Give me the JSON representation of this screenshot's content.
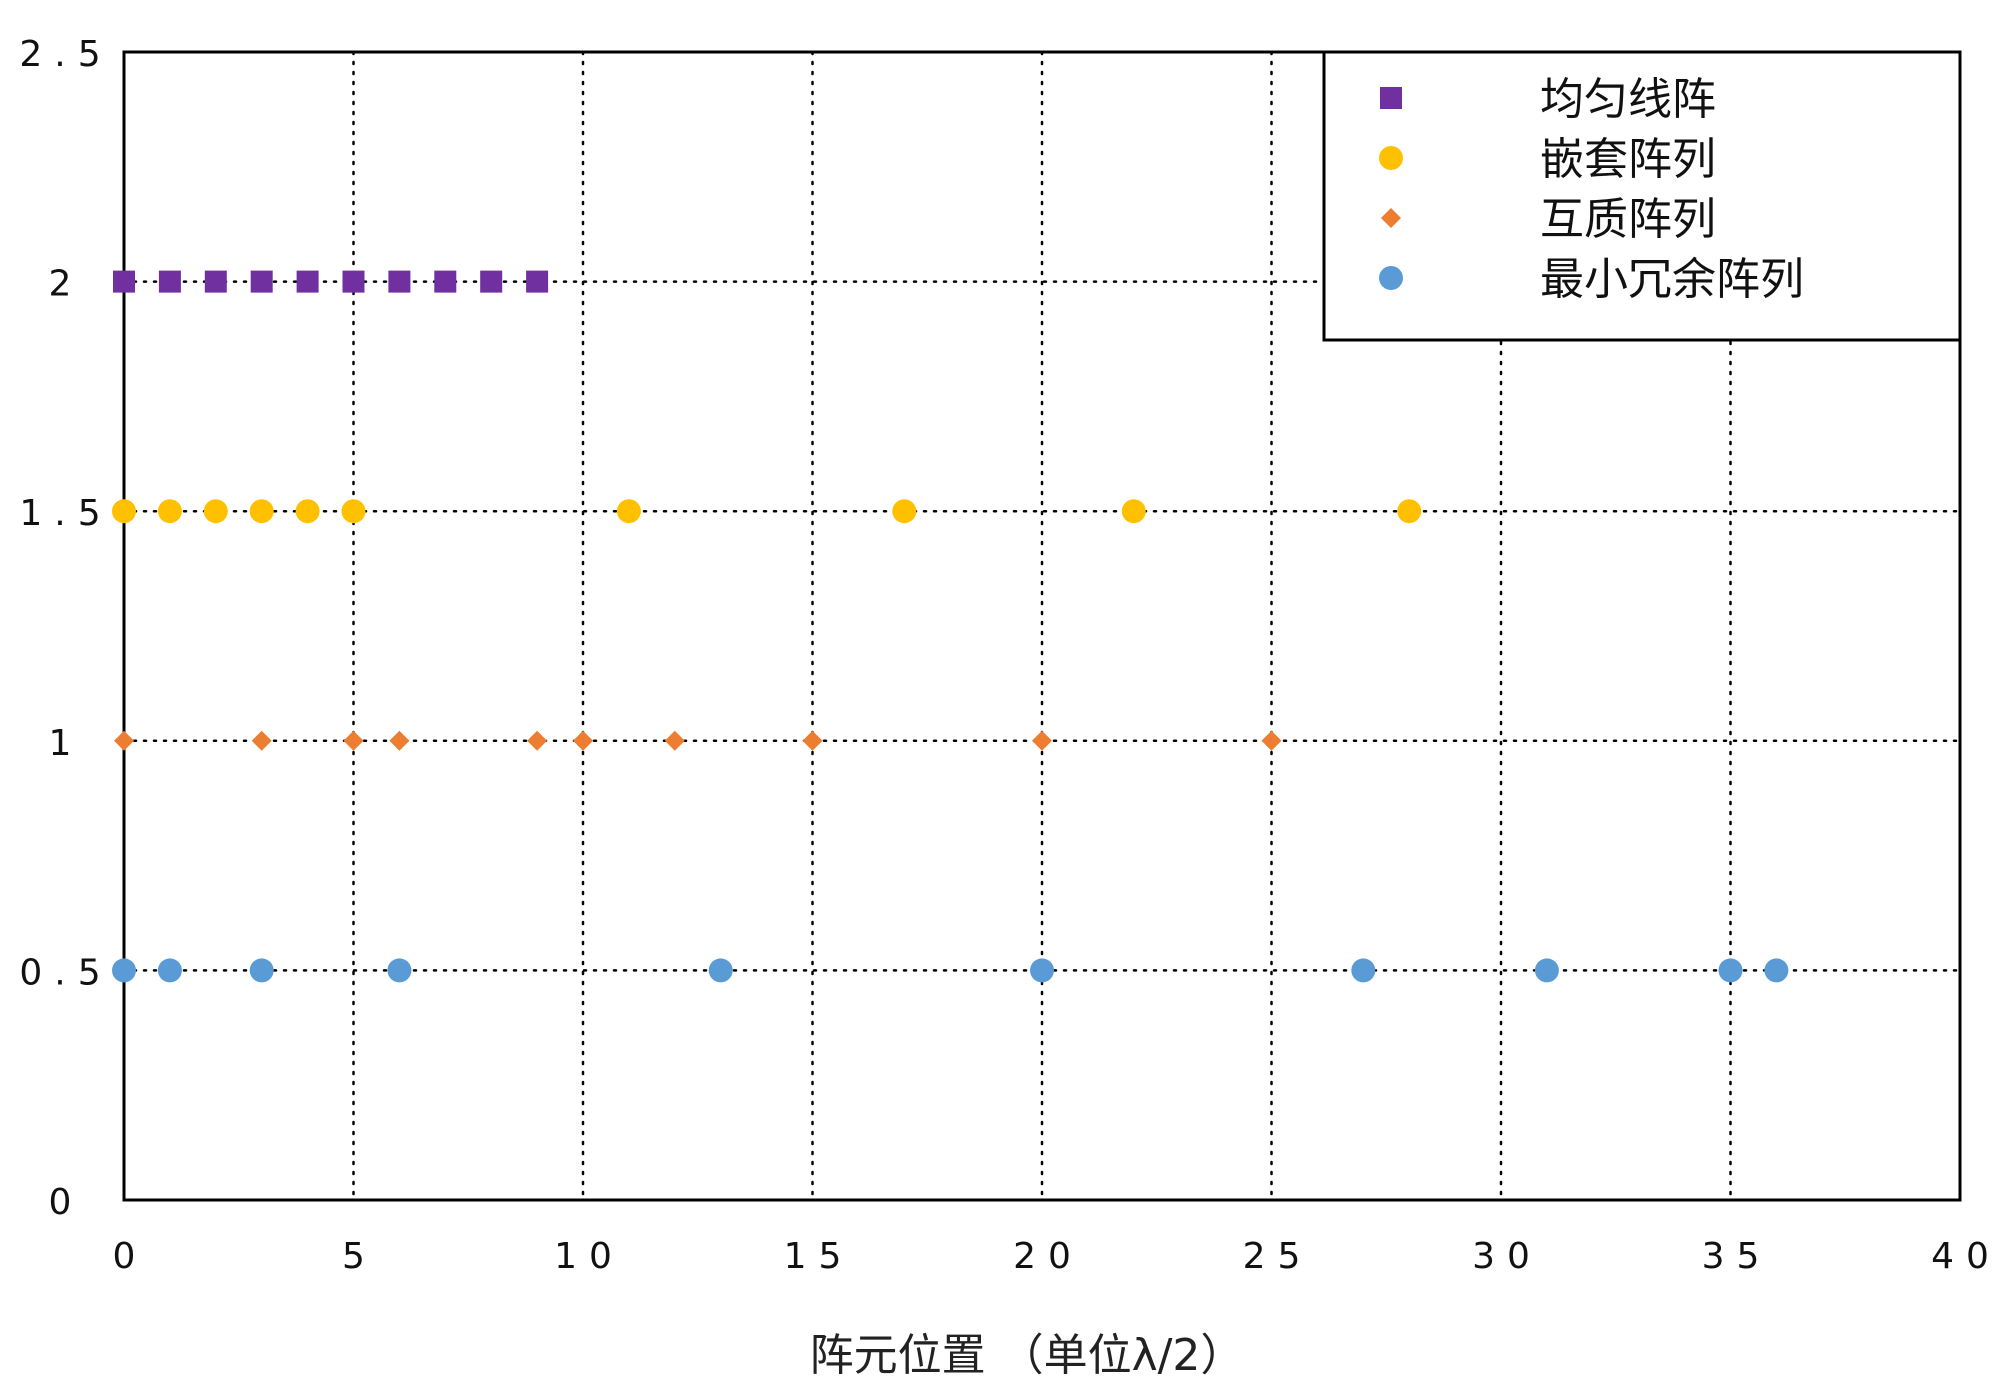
{
  "chart_data": {
    "type": "scatter",
    "title": "",
    "xlabel": "阵元位置 （单位λ/2）",
    "ylabel": "",
    "xlim": [
      0,
      40
    ],
    "ylim": [
      0,
      2.5
    ],
    "xticks": [
      0,
      5,
      10,
      15,
      20,
      25,
      30,
      35,
      40
    ],
    "xtick_labels": [
      "0",
      "5",
      "10",
      "15",
      "20",
      "25",
      "30",
      "35",
      "40"
    ],
    "yticks": [
      0,
      0.5,
      1,
      1.5,
      2,
      2.5
    ],
    "ytick_labels": [
      "0",
      "0.5",
      "1",
      "1.5",
      "2",
      "2.5"
    ],
    "grid": "dotted",
    "legend_position": "top-right",
    "series": [
      {
        "name": "均匀线阵",
        "marker": "square",
        "color": "#7030A0",
        "y": 2,
        "x": [
          0,
          1,
          2,
          3,
          4,
          5,
          6,
          7,
          8,
          9
        ]
      },
      {
        "name": "嵌套阵列",
        "marker": "circle",
        "color": "#FFC000",
        "y": 1.5,
        "x": [
          0,
          1,
          2,
          3,
          4,
          5,
          11,
          17,
          22,
          28
        ]
      },
      {
        "name": "互质阵列",
        "marker": "diamond",
        "color": "#ED7D31",
        "y": 1,
        "x": [
          0,
          3,
          5,
          6,
          9,
          10,
          12,
          15,
          20,
          25
        ]
      },
      {
        "name": "最小冗余阵列",
        "marker": "circle",
        "color": "#5B9BD5",
        "y": 0.5,
        "x": [
          0,
          1,
          3,
          6,
          13,
          20,
          27,
          31,
          35,
          36
        ]
      }
    ]
  }
}
